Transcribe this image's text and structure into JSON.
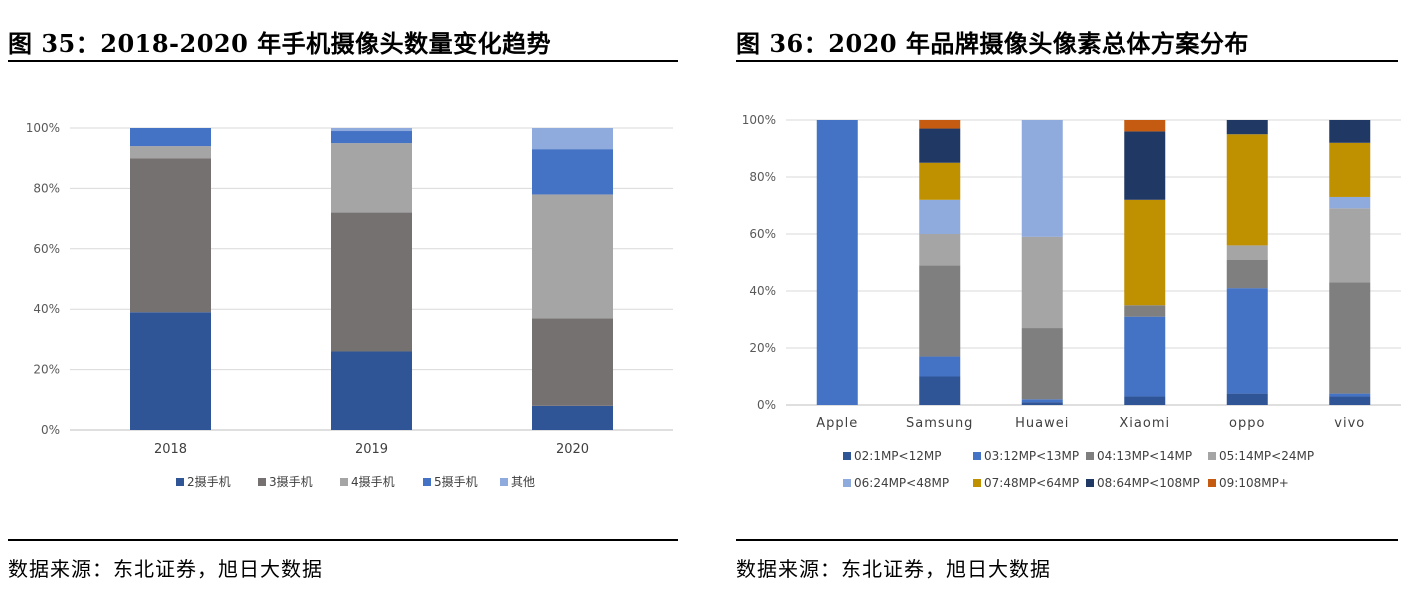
{
  "figures": [
    {
      "title": "图 35：2018-2020 年手机摄像头数量变化趋势",
      "source": "数据来源：东北证券，旭日大数据"
    },
    {
      "title": "图 36：2020 年品牌摄像头像素总体方案分布",
      "source": "数据来源：东北证券，旭日大数据"
    }
  ],
  "chart_data": [
    {
      "type": "bar",
      "stacked": true,
      "percent": true,
      "categories": [
        "2018",
        "2019",
        "2020"
      ],
      "yticks": [
        "0%",
        "20%",
        "40%",
        "60%",
        "80%",
        "100%"
      ],
      "ylim": [
        0,
        100
      ],
      "grid": true,
      "legend_position": "bottom",
      "series": [
        {
          "name": "2摄手机",
          "color": "#2f5597",
          "values": [
            39,
            26,
            8
          ]
        },
        {
          "name": "3摄手机",
          "color": "#767171",
          "values": [
            51,
            46,
            29
          ]
        },
        {
          "name": "4摄手机",
          "color": "#a5a5a5",
          "values": [
            4,
            23,
            41
          ]
        },
        {
          "name": "5摄手机",
          "color": "#4472c4",
          "values": [
            6,
            4,
            15
          ]
        },
        {
          "name": "其他",
          "color": "#8faadc",
          "values": [
            0,
            1,
            7
          ]
        }
      ]
    },
    {
      "type": "bar",
      "stacked": true,
      "percent": true,
      "categories": [
        "Apple",
        "Samsung",
        "Huawei",
        "Xiaomi",
        "oppo",
        "vivo"
      ],
      "yticks": [
        "0%",
        "20%",
        "40%",
        "60%",
        "80%",
        "100%"
      ],
      "ylim": [
        0,
        100
      ],
      "grid": true,
      "legend_position": "bottom",
      "series": [
        {
          "name": "02:1MP<12MP",
          "color": "#2f5597",
          "values": [
            0,
            10,
            1,
            3,
            4,
            3
          ]
        },
        {
          "name": "03:12MP<13MP",
          "color": "#4472c4",
          "values": [
            100,
            7,
            1,
            28,
            37,
            1
          ]
        },
        {
          "name": "04:13MP<14MP",
          "color": "#7f7f7f",
          "values": [
            0,
            32,
            25,
            4,
            10,
            39
          ]
        },
        {
          "name": "05:14MP<24MP",
          "color": "#a5a5a5",
          "values": [
            0,
            11,
            32,
            0,
            5,
            26
          ]
        },
        {
          "name": "06:24MP<48MP",
          "color": "#8faadc",
          "values": [
            0,
            12,
            41,
            0,
            0,
            4
          ]
        },
        {
          "name": "07:48MP<64MP",
          "color": "#bf9000",
          "values": [
            0,
            13,
            0,
            37,
            39,
            19
          ]
        },
        {
          "name": "08:64MP<108MP",
          "color": "#203864",
          "values": [
            0,
            12,
            0,
            24,
            5,
            8
          ]
        },
        {
          "name": "09:108MP+",
          "color": "#c55a11",
          "values": [
            0,
            3,
            0,
            4,
            0,
            0
          ]
        }
      ]
    }
  ]
}
